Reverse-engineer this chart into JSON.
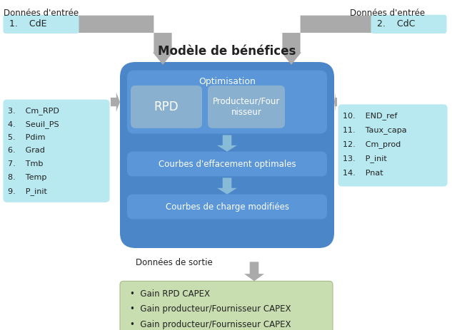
{
  "title": "Modèle de bénéfices",
  "bg_color": "#ffffff",
  "main_box_color": "#4a86c8",
  "opt_box_color": "#5a96d8",
  "sub_box_color": "#8ab0d0",
  "cyan_box_color": "#b8e8f0",
  "green_box_color": "#c8ddb0",
  "arrow_color": "#aaaaaa",
  "text_color": "#222222",
  "white_text": "#ffffff",
  "left_top_label": "Données d'entrée",
  "left_top_item": "1.    CdE",
  "right_top_label": "Données d'entrée",
  "right_top_item": "2.    CdC",
  "left_box_items": [
    "3.    Cm_RPD",
    "4.    Seuil_PS",
    "5.    Pdim",
    "6.    Grad",
    "7.    Tmb",
    "8.    Temp",
    "9.    P_init"
  ],
  "right_box_items": [
    "10.    END_ref",
    "11.    Taux_capa",
    "12.    Cm_prod",
    "13.    P_init",
    "14.    Pnat"
  ],
  "opt_label": "Optimisation",
  "rpd_label": "RPD",
  "prod_label": "Producteur/Four\nnisseur",
  "courbes_eff_label": "Courbes d'effacement optimales",
  "courbes_ch_label": "Courbes de charge modifiées",
  "sortie_label": "Données de sortie",
  "output_items": [
    "Gain RPD CAPEX",
    "Gain producteur/Fournisseur CAPEX",
    "Gain producteur/Fournisseur CAPEX"
  ]
}
